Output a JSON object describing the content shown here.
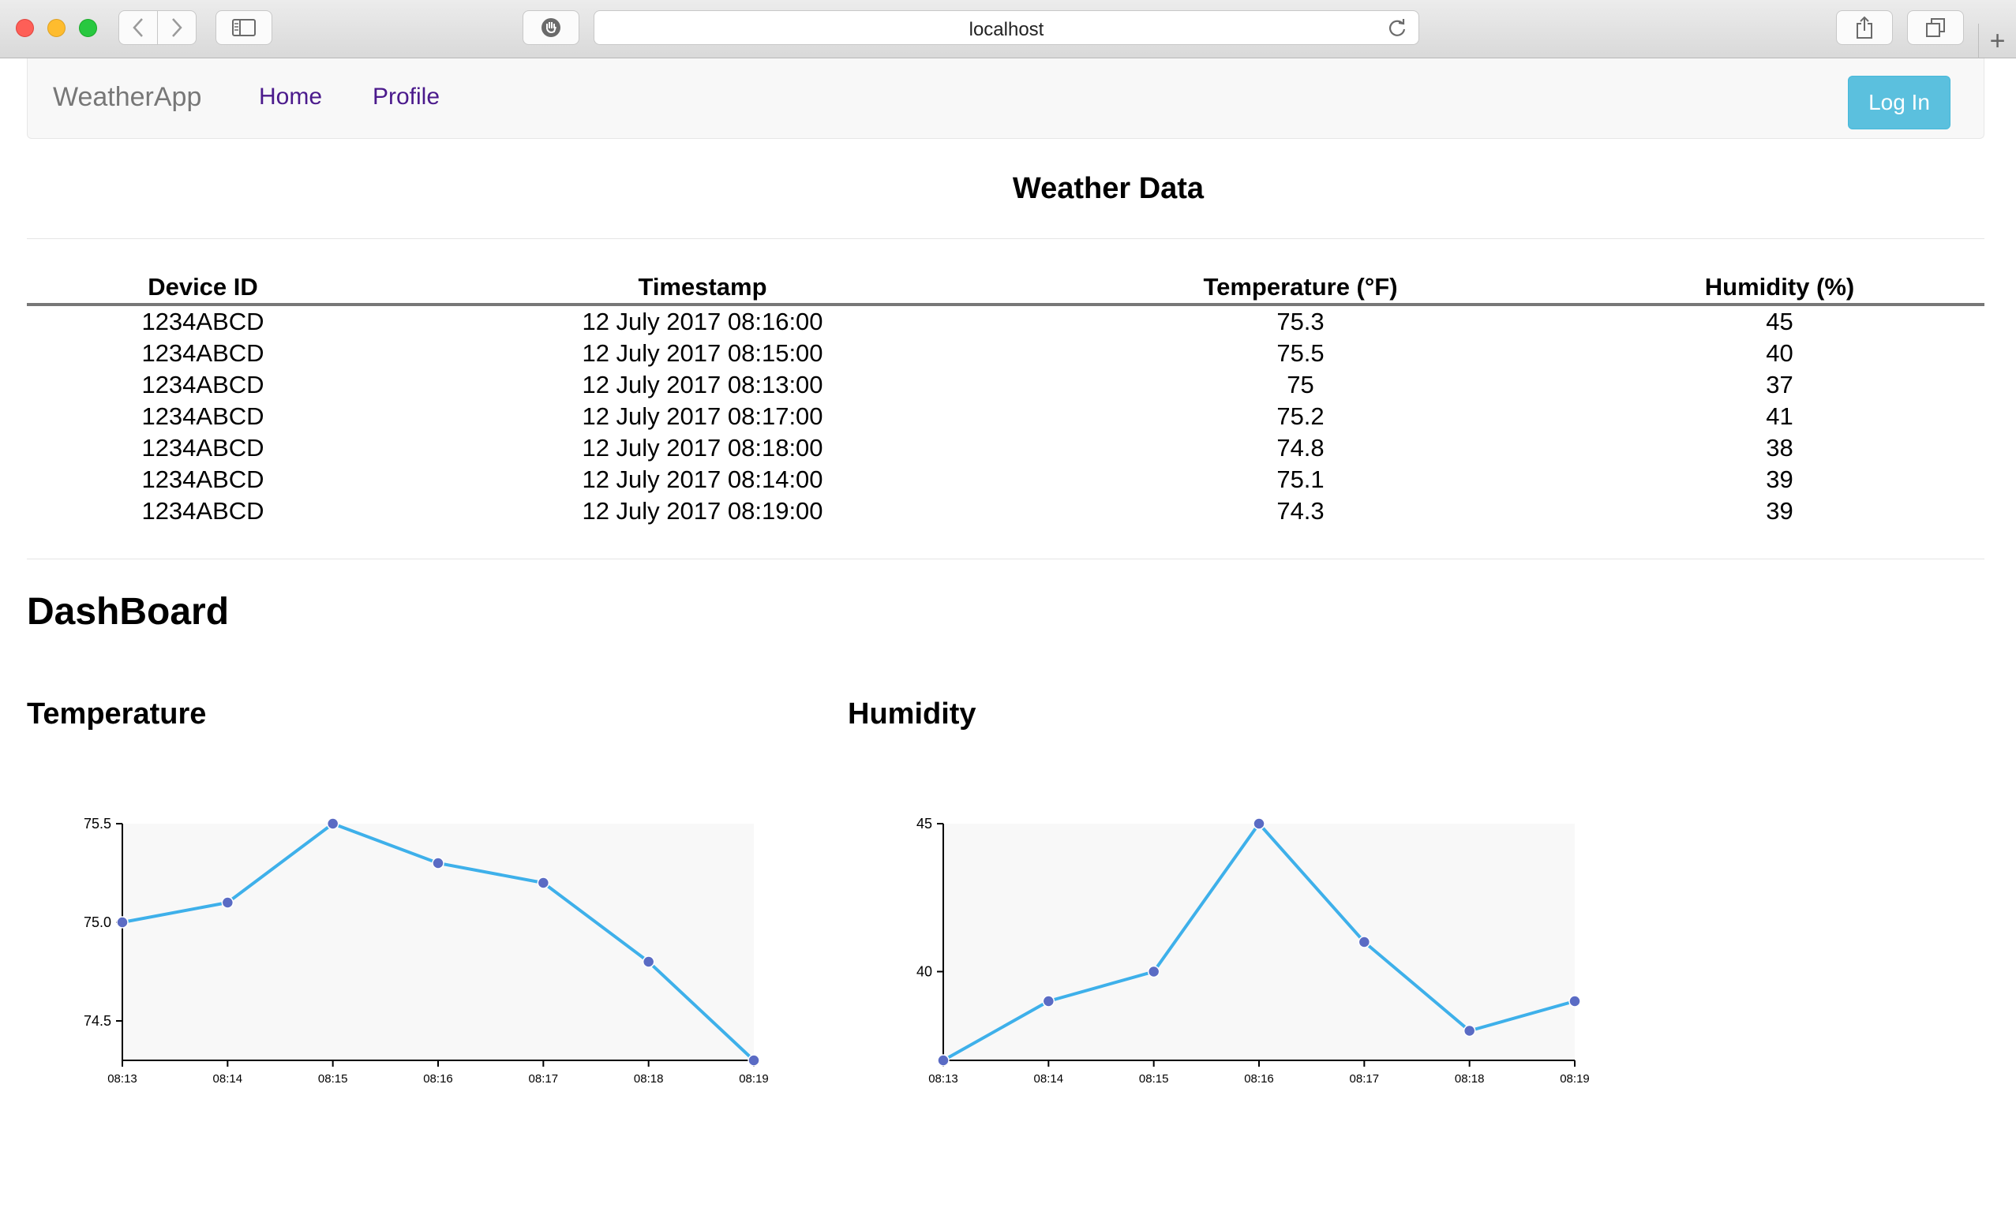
{
  "browser": {
    "url": "localhost"
  },
  "navbar": {
    "brand": "WeatherApp",
    "links": [
      "Home",
      "Profile"
    ],
    "login_label": "Log In",
    "link_color": "#4b1a8c",
    "login_color": "#5bc0de"
  },
  "weather": {
    "title": "Weather Data",
    "headers": [
      "Device ID",
      "Timestamp",
      "Temperature (°F)",
      "Humidity (%)"
    ],
    "rows": [
      [
        "1234ABCD",
        "12 July 2017 08:16:00",
        "75.3",
        "45"
      ],
      [
        "1234ABCD",
        "12 July 2017 08:15:00",
        "75.5",
        "40"
      ],
      [
        "1234ABCD",
        "12 July 2017 08:13:00",
        "75",
        "37"
      ],
      [
        "1234ABCD",
        "12 July 2017 08:17:00",
        "75.2",
        "41"
      ],
      [
        "1234ABCD",
        "12 July 2017 08:18:00",
        "74.8",
        "38"
      ],
      [
        "1234ABCD",
        "12 July 2017 08:14:00",
        "75.1",
        "39"
      ],
      [
        "1234ABCD",
        "12 July 2017 08:19:00",
        "74.3",
        "39"
      ]
    ]
  },
  "dashboard": {
    "title": "DashBoard",
    "temperature_title": "Temperature",
    "humidity_title": "Humidity"
  },
  "chart_data": [
    {
      "type": "line",
      "title": "Temperature",
      "x": [
        "08:13",
        "08:14",
        "08:15",
        "08:16",
        "08:17",
        "08:18",
        "08:19"
      ],
      "values": [
        75.0,
        75.1,
        75.5,
        75.3,
        75.2,
        74.8,
        74.3
      ],
      "ylim": [
        74.3,
        75.5
      ],
      "yticks": [
        74.5,
        75.0,
        75.5
      ],
      "ytick_labels": [
        "74.5",
        "75.0",
        "75.5"
      ],
      "line_color": "#3eb0ea",
      "point_color": "#5a6bc4",
      "plot_bg": "#f8f8f8"
    },
    {
      "type": "line",
      "title": "Humidity",
      "x": [
        "08:13",
        "08:14",
        "08:15",
        "08:16",
        "08:17",
        "08:18",
        "08:19"
      ],
      "values": [
        37,
        39,
        40,
        45,
        41,
        38,
        39
      ],
      "ylim": [
        37,
        45
      ],
      "yticks": [
        40,
        45
      ],
      "ytick_labels": [
        "40",
        "45"
      ],
      "line_color": "#3eb0ea",
      "point_color": "#5a6bc4",
      "plot_bg": "#f8f8f8"
    }
  ]
}
